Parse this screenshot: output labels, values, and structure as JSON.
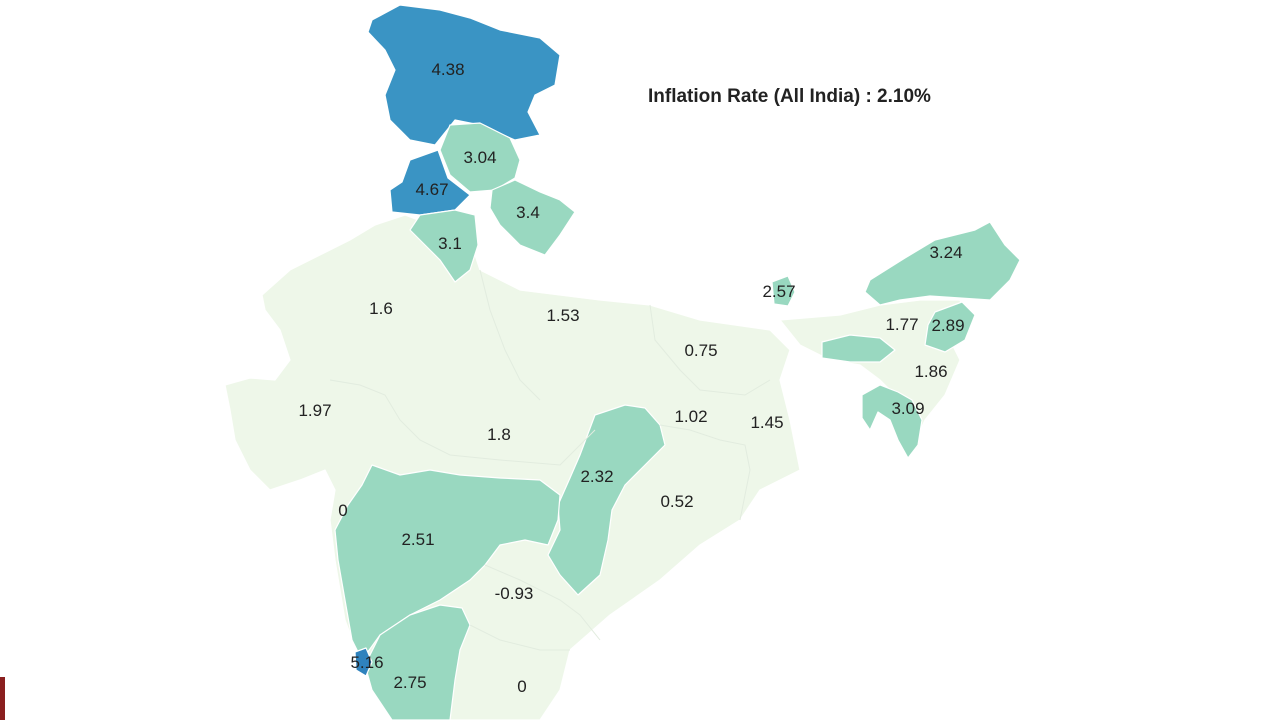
{
  "title": "Inflation Rate (All India) : 2.10%",
  "colors": {
    "low": "#eef7e9",
    "mid": "#99d8c0",
    "high": "#3a94c4",
    "higher": "#2f82bd"
  },
  "regions": [
    {
      "name": "Jammu & Kashmir",
      "value": "4.38",
      "band": "high"
    },
    {
      "name": "Himachal Pradesh",
      "value": "3.04",
      "band": "mid"
    },
    {
      "name": "Punjab",
      "value": "4.67",
      "band": "high"
    },
    {
      "name": "Uttarakhand",
      "value": "3.4",
      "band": "mid"
    },
    {
      "name": "Haryana",
      "value": "3.1",
      "band": "mid"
    },
    {
      "name": "Rajasthan",
      "value": "1.6",
      "band": "low"
    },
    {
      "name": "Uttar Pradesh",
      "value": "1.53",
      "band": "low"
    },
    {
      "name": "Bihar",
      "value": "0.75",
      "band": "low"
    },
    {
      "name": "Sikkim",
      "value": "2.57",
      "band": "mid"
    },
    {
      "name": "Arunachal Pradesh",
      "value": "3.24",
      "band": "mid"
    },
    {
      "name": "Assam",
      "value": "1.77",
      "band": "low"
    },
    {
      "name": "Nagaland",
      "value": "2.89",
      "band": "mid"
    },
    {
      "name": "Manipur",
      "value": "1.86",
      "band": "low"
    },
    {
      "name": "Mizoram",
      "value": "3.09",
      "band": "mid"
    },
    {
      "name": "Gujarat",
      "value": "1.97",
      "band": "low"
    },
    {
      "name": "Madhya Pradesh",
      "value": "1.8",
      "band": "low"
    },
    {
      "name": "Jharkhand",
      "value": "1.02",
      "band": "low"
    },
    {
      "name": "West Bengal",
      "value": "1.45",
      "band": "low"
    },
    {
      "name": "Chhattisgarh",
      "value": "2.32",
      "band": "mid"
    },
    {
      "name": "Odisha",
      "value": "0.52",
      "band": "low"
    },
    {
      "name": "Dadra & Nagar Haveli",
      "value": "0",
      "band": "low"
    },
    {
      "name": "Maharashtra",
      "value": "2.51",
      "band": "mid"
    },
    {
      "name": "Telangana",
      "value": "-0.93",
      "band": "low"
    },
    {
      "name": "Goa",
      "value": "5.16",
      "band": "higher"
    },
    {
      "name": "Karnataka",
      "value": "2.75",
      "band": "mid"
    },
    {
      "name": "Andhra Pradesh",
      "value": "0",
      "band": "low"
    }
  ]
}
